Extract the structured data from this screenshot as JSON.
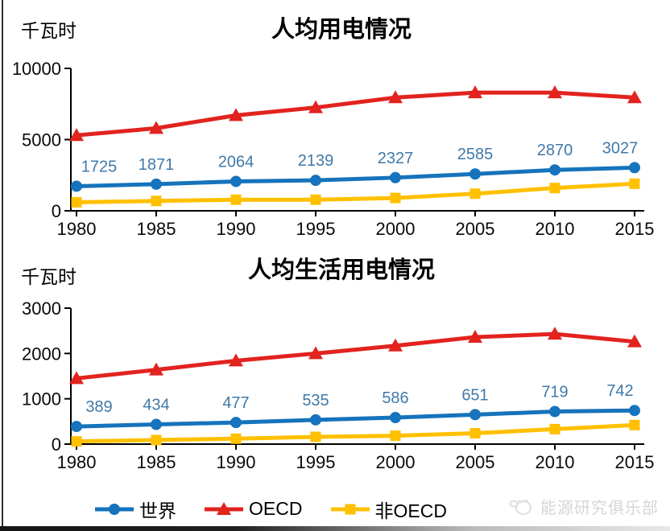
{
  "chart_data": [
    {
      "type": "line",
      "title": "人均用电情况",
      "unit_label": "千瓦时",
      "x_categories": [
        "1980",
        "1985",
        "1990",
        "1995",
        "2000",
        "2005",
        "2010",
        "2015"
      ],
      "ylim": [
        0,
        10000
      ],
      "y_ticks": [
        0,
        5000,
        10000
      ],
      "grid": false,
      "series": [
        {
          "id": "world",
          "name": "世界",
          "color": "#1673BC",
          "marker": "circle",
          "show_labels": true,
          "values": [
            1725,
            1871,
            2064,
            2139,
            2327,
            2585,
            2870,
            3027
          ]
        },
        {
          "id": "oecd",
          "name": "OECD",
          "color": "#E2231E",
          "marker": "triangle",
          "show_labels": false,
          "values": [
            5300,
            5800,
            6700,
            7250,
            7950,
            8300,
            8300,
            7950
          ]
        },
        {
          "id": "non-oecd",
          "name": "非OECD",
          "color": "#FFC000",
          "marker": "square",
          "show_labels": false,
          "values": [
            600,
            690,
            780,
            780,
            900,
            1200,
            1600,
            1900
          ]
        }
      ]
    },
    {
      "type": "line",
      "title": "人均生活用电情况",
      "unit_label": "千瓦时",
      "x_categories": [
        "1980",
        "1985",
        "1990",
        "1995",
        "2000",
        "2005",
        "2010",
        "2015"
      ],
      "ylim": [
        0,
        3000
      ],
      "y_ticks": [
        0,
        1000,
        2000,
        3000
      ],
      "grid": false,
      "series": [
        {
          "id": "world",
          "name": "世界",
          "color": "#1673BC",
          "marker": "circle",
          "show_labels": true,
          "values": [
            389,
            434,
            477,
            535,
            586,
            651,
            719,
            742
          ]
        },
        {
          "id": "oecd",
          "name": "OECD",
          "color": "#E2231E",
          "marker": "triangle",
          "show_labels": false,
          "values": [
            1450,
            1640,
            1840,
            2000,
            2170,
            2360,
            2430,
            2260
          ]
        },
        {
          "id": "non-oecd",
          "name": "非OECD",
          "color": "#FFC000",
          "marker": "square",
          "show_labels": false,
          "values": [
            60,
            90,
            120,
            160,
            185,
            240,
            330,
            420
          ]
        }
      ]
    }
  ],
  "data_label_color": "#4079A8",
  "legend": {
    "position": "bottom",
    "items": [
      "世界",
      "OECD",
      "非OECD"
    ]
  },
  "watermark": {
    "text": "能源研究俱乐部"
  }
}
